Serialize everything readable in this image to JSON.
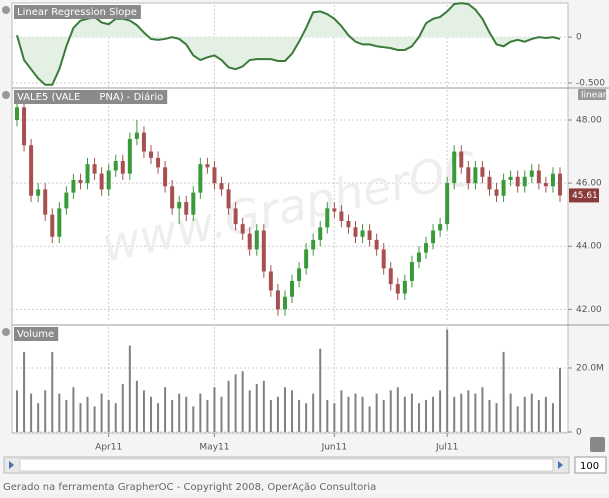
{
  "chart_data": [
    {
      "type": "line",
      "title": "Linear Regression Slope",
      "color": "#3a7a3a",
      "fill": "#e4f0e4",
      "values": [
        0.02,
        -0.25,
        -0.35,
        -0.45,
        -0.52,
        -0.52,
        -0.35,
        -0.1,
        0.1,
        0.18,
        0.2,
        0.22,
        0.16,
        0.14,
        0.2,
        0.2,
        0.18,
        0.13,
        0.05,
        -0.02,
        -0.03,
        -0.02,
        0.0,
        -0.02,
        -0.08,
        -0.2,
        -0.25,
        -0.22,
        -0.2,
        -0.25,
        -0.33,
        -0.35,
        -0.32,
        -0.25,
        -0.24,
        -0.24,
        -0.24,
        -0.26,
        -0.26,
        -0.18,
        -0.05,
        0.1,
        0.27,
        0.28,
        0.25,
        0.2,
        0.12,
        0.02,
        -0.05,
        -0.08,
        -0.08,
        -0.1,
        -0.11,
        -0.12,
        -0.14,
        -0.14,
        -0.1,
        0.0,
        0.15,
        0.2,
        0.22,
        0.28,
        0.36,
        0.37,
        0.36,
        0.3,
        0.2,
        0.05,
        -0.08,
        -0.1,
        -0.05,
        -0.03,
        -0.05,
        -0.02,
        0.0,
        -0.01,
        0.0,
        -0.02
      ],
      "ylim": [
        -0.555,
        0.35
      ],
      "yticks": [
        0,
        {
          "value": -0.5,
          "label": "-0.500"
        }
      ],
      "grid": true
    },
    {
      "type": "candlestick",
      "title": "VALE5 (VALE      PNA) - Diário",
      "scale": "linear",
      "watermark": "www.GrapherOC",
      "up_color": "#3a9a3a",
      "down_color": "#a85050",
      "open": [
        48.0,
        48.4,
        47.2,
        45.6,
        45.8,
        45.0,
        44.3,
        45.2,
        45.7,
        46.1,
        46.0,
        46.6,
        46.3,
        45.8,
        46.4,
        46.7,
        46.3,
        47.4,
        47.6,
        47.0,
        46.8,
        46.5,
        45.9,
        45.2,
        45.4,
        45.0,
        45.7,
        46.6,
        46.5,
        46.0,
        45.8,
        45.2,
        44.7,
        44.4,
        43.9,
        44.5,
        43.2,
        42.6,
        42.0,
        42.4,
        42.9,
        43.3,
        43.9,
        44.2,
        44.6,
        45.2,
        45.1,
        44.8,
        44.6,
        44.3,
        44.5,
        44.2,
        43.9,
        43.3,
        42.8,
        42.5,
        42.9,
        43.5,
        43.8,
        44.1,
        44.5,
        44.7,
        46.0,
        47.0,
        46.5,
        46.0,
        46.5,
        46.2,
        45.8,
        45.6,
        46.1,
        46.2,
        45.9,
        46.2,
        46.4,
        46.0,
        45.9,
        46.3
      ],
      "high": [
        48.6,
        48.6,
        47.4,
        46.0,
        46.0,
        45.2,
        45.4,
        45.9,
        46.3,
        46.3,
        46.8,
        46.8,
        46.5,
        46.6,
        46.9,
        46.9,
        47.6,
        48.0,
        47.8,
        47.2,
        47.0,
        46.7,
        46.1,
        45.6,
        45.6,
        45.9,
        46.8,
        46.8,
        46.7,
        46.2,
        46.0,
        45.4,
        44.9,
        44.6,
        44.7,
        44.7,
        43.4,
        42.8,
        42.6,
        43.1,
        43.5,
        44.1,
        44.4,
        44.8,
        45.4,
        45.4,
        45.3,
        45.0,
        44.8,
        44.7,
        44.7,
        44.4,
        44.1,
        43.5,
        43.0,
        43.1,
        43.7,
        44.0,
        44.3,
        44.7,
        44.9,
        46.2,
        47.2,
        47.2,
        46.7,
        46.7,
        46.7,
        46.4,
        46.0,
        46.3,
        46.4,
        46.4,
        46.4,
        46.6,
        46.6,
        46.2,
        46.5,
        46.5
      ],
      "low": [
        47.8,
        47.0,
        45.4,
        45.4,
        44.8,
        44.1,
        44.1,
        45.0,
        45.5,
        45.8,
        45.8,
        46.1,
        45.6,
        45.6,
        46.2,
        46.1,
        46.1,
        47.2,
        46.8,
        46.6,
        46.3,
        45.7,
        45.0,
        44.7,
        44.8,
        44.8,
        45.5,
        46.3,
        45.8,
        45.6,
        45.0,
        44.5,
        44.2,
        43.7,
        43.7,
        43.0,
        42.4,
        41.8,
        41.8,
        42.2,
        42.7,
        43.1,
        43.7,
        44.0,
        44.4,
        44.9,
        44.6,
        44.4,
        44.1,
        44.1,
        44.0,
        43.7,
        43.1,
        42.6,
        42.3,
        42.3,
        42.7,
        43.3,
        43.6,
        43.9,
        44.3,
        44.5,
        45.8,
        46.3,
        45.8,
        45.8,
        46.0,
        45.6,
        45.4,
        45.4,
        45.9,
        45.7,
        45.7,
        46.0,
        45.8,
        45.7,
        45.7,
        45.4
      ],
      "close": [
        48.4,
        47.2,
        45.6,
        45.8,
        45.0,
        44.3,
        45.2,
        45.7,
        46.1,
        46.0,
        46.6,
        46.3,
        45.8,
        46.4,
        46.7,
        46.3,
        47.4,
        47.6,
        47.0,
        46.8,
        46.5,
        45.9,
        45.2,
        45.4,
        45.0,
        45.7,
        46.6,
        46.5,
        46.0,
        45.8,
        45.2,
        44.7,
        44.4,
        43.9,
        44.5,
        43.2,
        42.6,
        42.0,
        42.4,
        42.9,
        43.3,
        43.9,
        44.2,
        44.6,
        45.2,
        45.1,
        44.8,
        44.6,
        44.3,
        44.5,
        44.2,
        43.9,
        43.3,
        42.8,
        42.5,
        42.9,
        43.5,
        43.8,
        44.1,
        44.5,
        44.7,
        46.0,
        47.0,
        46.5,
        46.0,
        46.5,
        46.2,
        45.8,
        45.6,
        46.1,
        46.2,
        45.9,
        46.2,
        46.4,
        46.0,
        45.9,
        46.3,
        45.61
      ],
      "ylim": [
        41.6,
        48.95
      ],
      "yticks": [
        {
          "value": 42,
          "label": "42.00"
        },
        {
          "value": 44,
          "label": "44.00"
        },
        {
          "value": 46,
          "label": "46.00"
        },
        {
          "value": 48,
          "label": "48.00"
        }
      ],
      "grid": true
    },
    {
      "type": "bar",
      "title": "Volume",
      "color": "#808080",
      "categories": [
        null,
        null,
        null,
        null,
        null,
        null,
        null,
        null,
        null,
        null,
        null,
        null,
        null,
        "Apr11",
        null,
        null,
        null,
        null,
        null,
        null,
        null,
        null,
        null,
        null,
        null,
        null,
        null,
        null,
        "May11",
        null,
        null,
        null,
        null,
        null,
        null,
        null,
        null,
        null,
        null,
        null,
        null,
        null,
        null,
        null,
        null,
        "Jun11",
        null,
        null,
        null,
        null,
        null,
        null,
        null,
        null,
        null,
        null,
        null,
        null,
        null,
        null,
        null,
        "Jul11",
        null,
        null,
        null,
        null,
        null,
        null,
        null,
        null,
        null,
        null,
        null,
        null,
        null,
        null,
        null,
        null
      ],
      "values": [
        13,
        25,
        12,
        9,
        13,
        25,
        12,
        10,
        14,
        9,
        11,
        8,
        12,
        10,
        9,
        15,
        27,
        16,
        13,
        11,
        9,
        14,
        10,
        12,
        11,
        8,
        12,
        10,
        14,
        11,
        16,
        18,
        19,
        13,
        15,
        16,
        10,
        11,
        14,
        13,
        10,
        9,
        12,
        26,
        10,
        9,
        13,
        11,
        12,
        11,
        8,
        12,
        10,
        13,
        14,
        11,
        12,
        9,
        10,
        11,
        13,
        32,
        11,
        12,
        13,
        12,
        14,
        10,
        9,
        25,
        12,
        8,
        11,
        12,
        10,
        11,
        9,
        20
      ],
      "ylim": [
        0,
        32.8
      ],
      "yticks": [
        0,
        {
          "value": 20,
          "label": "20.0M"
        }
      ],
      "grid": true
    }
  ],
  "ui": {
    "zoom": "100",
    "footer": "Gerado na ferramenta GrapherOC - Copyright 2008, OperAção Consultoria"
  }
}
